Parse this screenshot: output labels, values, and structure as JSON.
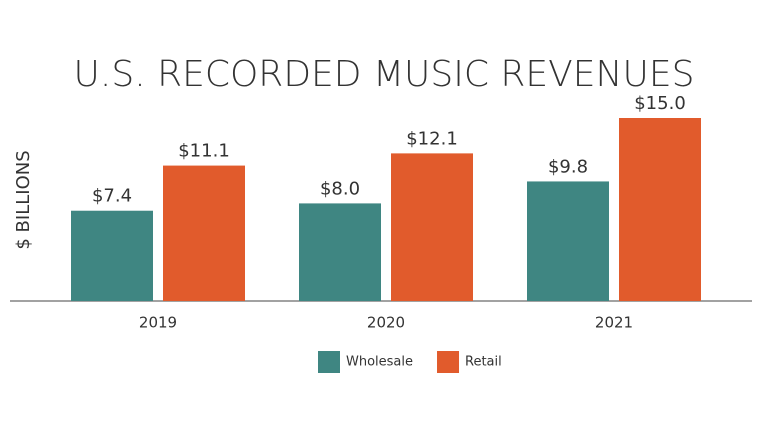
{
  "chart_data": {
    "type": "bar",
    "title": "U.S. RECORDED MUSIC REVENUES",
    "y_label": "$ BILLIONS",
    "categories": [
      "2019",
      "2020",
      "2021"
    ],
    "series": [
      {
        "name": "Wholesale",
        "color": "#3f8682",
        "values": [
          7.4,
          8.0,
          9.8
        ],
        "value_labels": [
          "$7.4",
          "$8.0",
          "$9.8"
        ]
      },
      {
        "name": "Retail",
        "color": "#e15b2c",
        "values": [
          11.1,
          12.1,
          15.0
        ],
        "value_labels": [
          "$11.1",
          "$12.1",
          "$15.0"
        ]
      }
    ],
    "ylim": [
      0,
      20
    ],
    "legend": "bottom"
  }
}
